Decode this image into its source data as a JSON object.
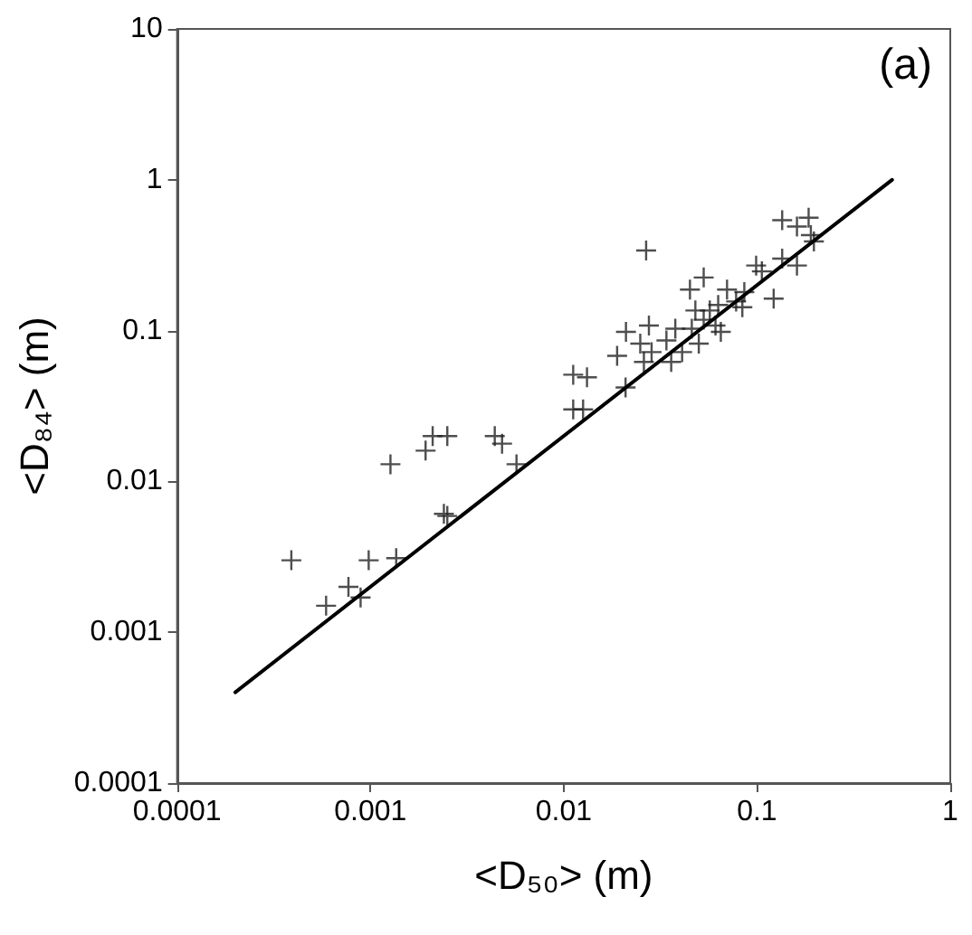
{
  "chart_data": {
    "type": "scatter",
    "xlabel": "<D₅₀> (m)",
    "ylabel": "<D₈₄> (m)",
    "annotations": [
      "(a)"
    ],
    "log": "xy",
    "grid": false,
    "marker": "cross",
    "xlim": [
      0.0001,
      1
    ],
    "ylim": [
      0.0001,
      10
    ],
    "xticks": [
      0.0001,
      0.001,
      0.01,
      0.1,
      1
    ],
    "yticks": [
      0.0001,
      0.001,
      0.01,
      0.1,
      1,
      10
    ],
    "series": [
      {
        "color": "#222222",
        "x": [
          0.00039,
          0.00059,
          0.00077,
          0.00089,
          0.00098,
          0.00136,
          0.00127,
          0.00193,
          0.0021,
          0.0025,
          0.0024,
          0.0025,
          0.0044,
          0.0048,
          0.0057,
          0.0112,
          0.0132,
          0.0112,
          0.0126,
          0.0267,
          0.0209,
          0.0189,
          0.021,
          0.0249,
          0.0276,
          0.026,
          0.0285,
          0.0378,
          0.041,
          0.05,
          0.045,
          0.053,
          0.048,
          0.057,
          0.061,
          0.065,
          0.07,
          0.078,
          0.086,
          0.084,
          0.099,
          0.106,
          0.122,
          0.135,
          0.161,
          0.135,
          0.161,
          0.185,
          0.19,
          0.197,
          0.053,
          0.034,
          0.046,
          0.063,
          0.036
        ],
        "values": [
          0.003,
          0.0015,
          0.002,
          0.0017,
          0.003,
          0.0031,
          0.013,
          0.016,
          0.02,
          0.02,
          0.0061,
          0.0059,
          0.02,
          0.0178,
          0.013,
          0.051,
          0.049,
          0.03,
          0.03,
          0.34,
          0.042,
          0.068,
          0.098,
          0.082,
          0.108,
          0.062,
          0.072,
          0.103,
          0.072,
          0.082,
          0.187,
          0.225,
          0.136,
          0.136,
          0.108,
          0.098,
          0.187,
          0.156,
          0.18,
          0.143,
          0.27,
          0.247,
          0.163,
          0.3,
          0.27,
          0.54,
          0.49,
          0.56,
          0.43,
          0.39,
          0.118,
          0.086,
          0.103,
          0.148,
          0.062
        ]
      },
      {
        "type": "line",
        "color": "#000000",
        "marker": "none",
        "line_style": "solid",
        "x": [
          0.0002,
          0.5
        ],
        "values": [
          0.0004,
          1
        ]
      }
    ]
  }
}
